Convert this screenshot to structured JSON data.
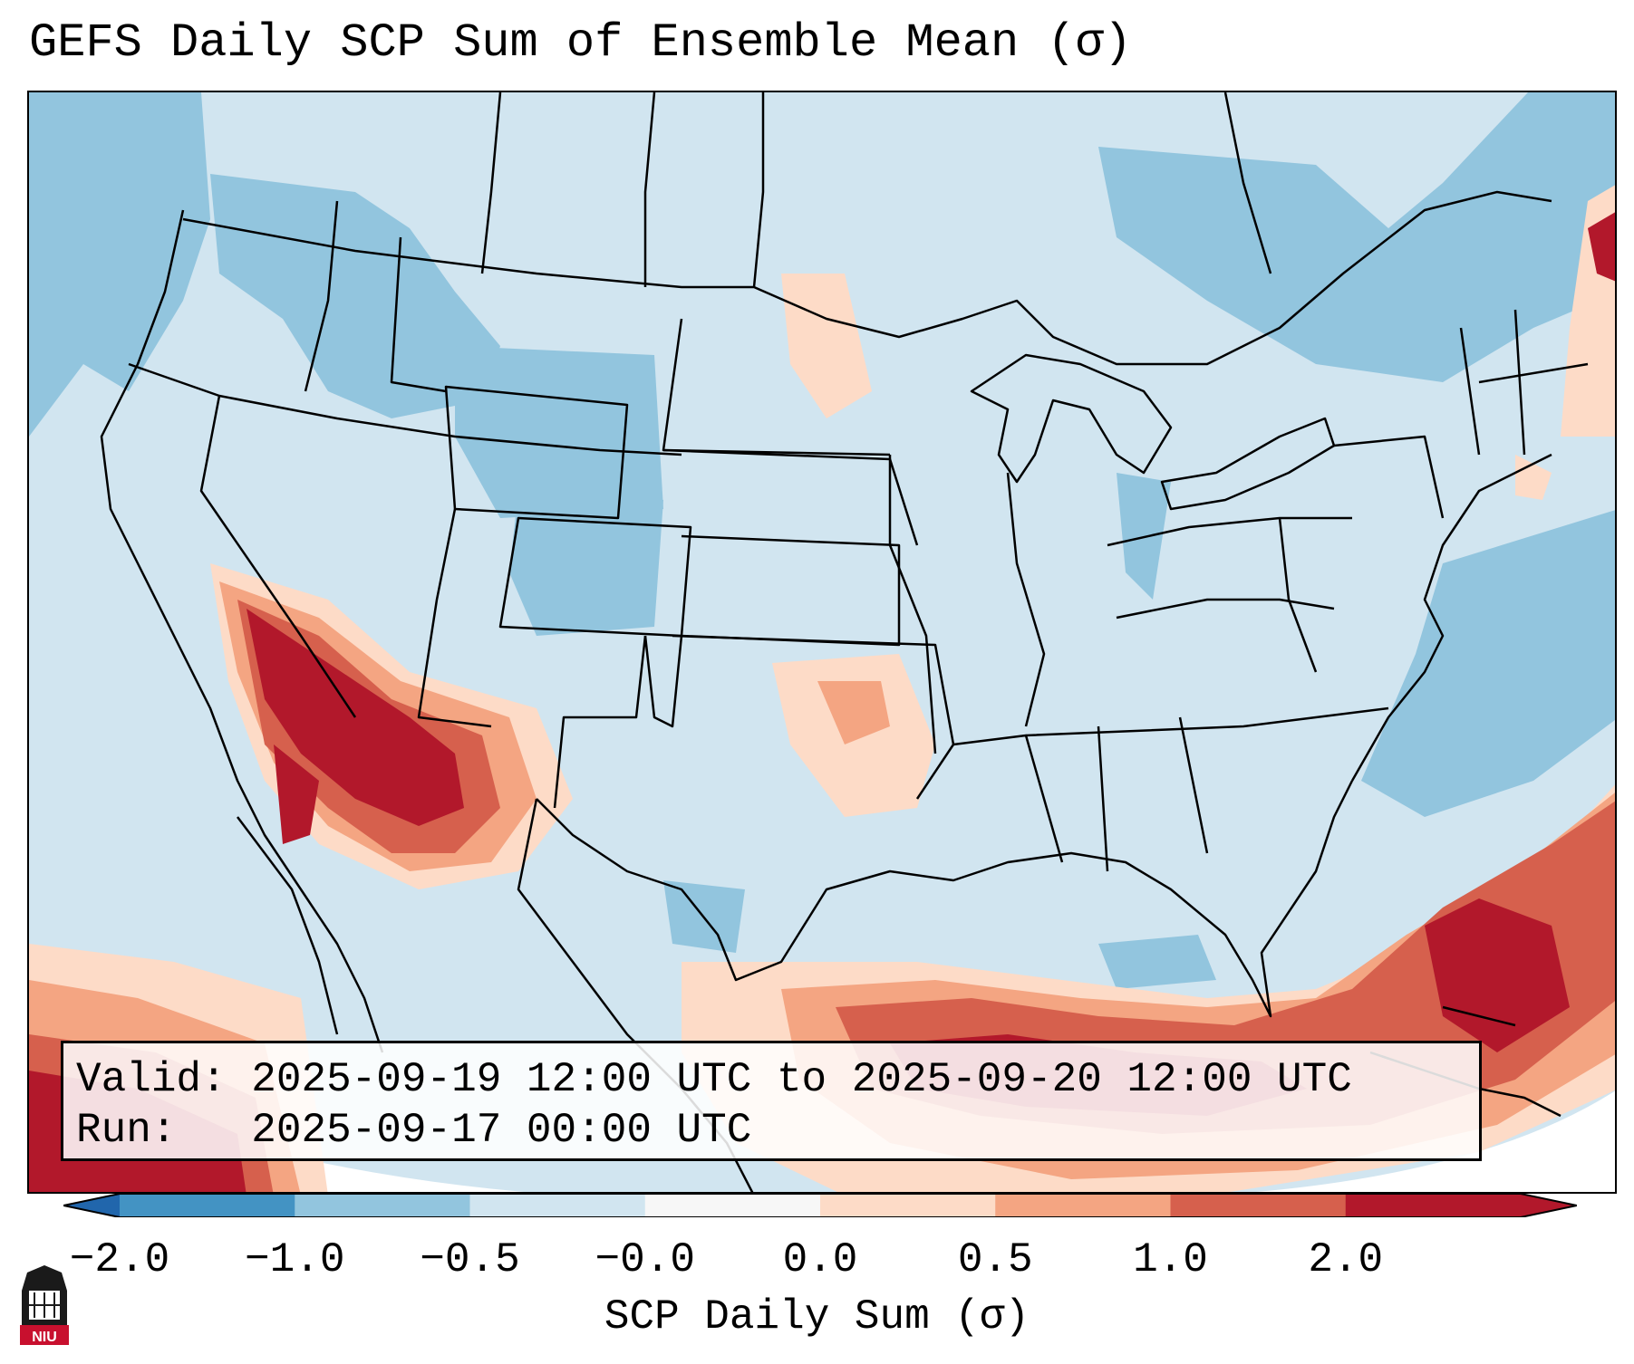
{
  "title": "GEFS Daily SCP Sum of Ensemble Mean (σ)",
  "info": {
    "valid_label": "Valid:",
    "valid_value": "2025-09-19 12:00 UTC to 2025-09-20 12:00 UTC",
    "run_label": "Run:",
    "run_value": "2025-09-17 00:00 UTC"
  },
  "colorbar": {
    "label": "SCP Daily Sum (σ)",
    "ticks": [
      "−2.0",
      "−1.0",
      "−0.5",
      "−0.0",
      "0.0",
      "0.5",
      "1.0",
      "2.0"
    ],
    "colors": [
      "#4393c3",
      "#92c5de",
      "#d1e5f0",
      "#f7f7f7",
      "#fddbc7",
      "#f4a582",
      "#d6604d",
      "#b2182b"
    ],
    "extend_low_color": "#2166ac",
    "extend_high_color": "#b2182b"
  },
  "logo": {
    "text": "NIU",
    "color": "#c8102e"
  }
}
